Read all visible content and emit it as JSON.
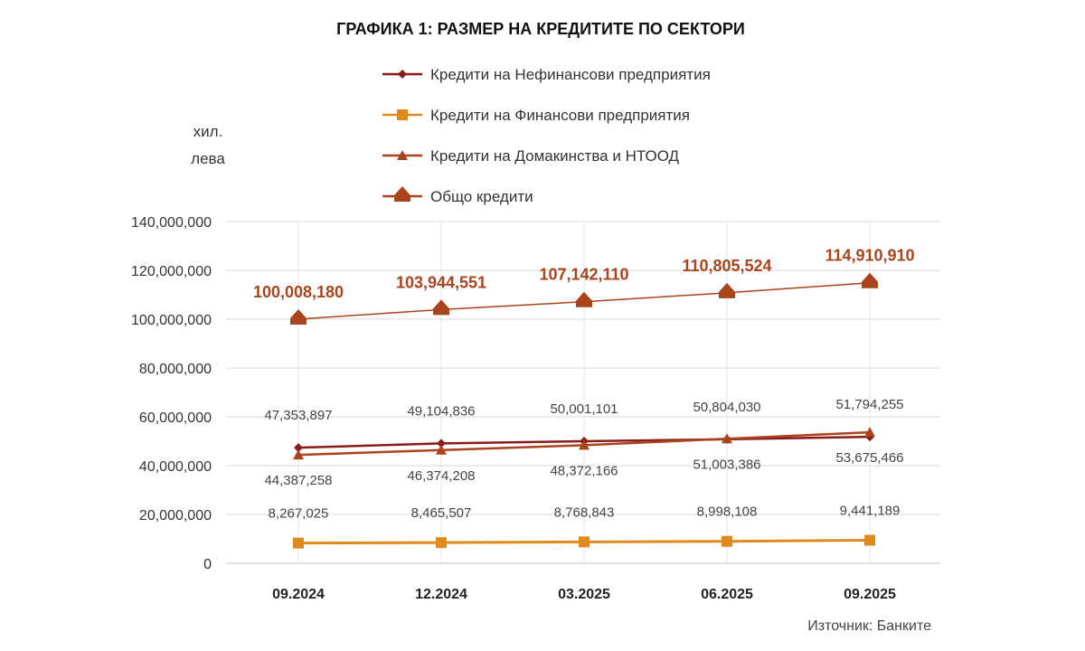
{
  "chart_data": {
    "type": "line",
    "title": "ГРАФИКА 1: РАЗМЕР НА КРЕДИТИТЕ ПО СЕКТОРИ",
    "ylabel_lines": [
      "хил.",
      "лева"
    ],
    "categories": [
      "09.2024",
      "12.2024",
      "03.2025",
      "06.2025",
      "09.2025"
    ],
    "ylim": [
      0,
      140000000
    ],
    "yticks": [
      0,
      20000000,
      40000000,
      60000000,
      80000000,
      100000000,
      120000000,
      140000000
    ],
    "ytick_labels": [
      "0",
      "20,000,000",
      "40,000,000",
      "60,000,000",
      "80,000,000",
      "100,000,000",
      "120,000,000",
      "140,000,000"
    ],
    "series": [
      {
        "name": "Кредити на Нефинансови предприятия",
        "color": "#8b1a1a",
        "marker": "diamond",
        "values": [
          47353897,
          49104836,
          50001101,
          50804030,
          51794255
        ],
        "labels": [
          "47,353,897",
          "49,104,836",
          "50,001,101",
          "50,804,030",
          "51,794,255"
        ],
        "label_position": "above"
      },
      {
        "name": "Кредити на Финансови предприятия",
        "color": "#e08a1e",
        "marker": "square",
        "values": [
          8267025,
          8465507,
          8768843,
          8998108,
          9441189
        ],
        "labels": [
          "8,267,025",
          "8,465,507",
          "8,768,843",
          "8,998,108",
          "9,441,189"
        ],
        "label_position": "above"
      },
      {
        "name": "Кредити на Домакинства и НТООД",
        "color": "#a9441c",
        "marker": "triangle",
        "values": [
          44387258,
          46374208,
          48372166,
          51003386,
          53675466
        ],
        "labels": [
          "44,387,258",
          "46,374,208",
          "48,372,166",
          "51,003,386",
          "53,675,466"
        ],
        "label_position": "below"
      },
      {
        "name": "Общо кредити",
        "color": "#a9441c",
        "marker": "big-diamond",
        "values": [
          100008180,
          103944551,
          107142110,
          110805524,
          114910910
        ],
        "labels": [
          "100,008,180",
          "103,944,551",
          "107,142,110",
          "110,805,524",
          "114,910,910"
        ],
        "label_position": "above-bold"
      }
    ],
    "grid": true,
    "legend": "top-center"
  },
  "source_note": "Източник: Банките"
}
